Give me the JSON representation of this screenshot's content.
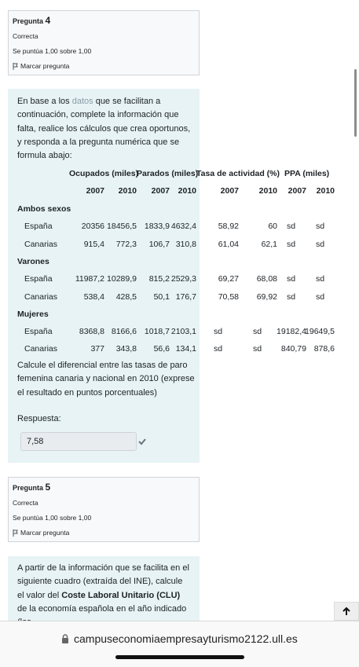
{
  "question4": {
    "label": "Pregunta",
    "number": "4",
    "state": "Correcta",
    "grade": "Se puntúa 1,00 sobre 1,00",
    "flag": "Marcar pregunta"
  },
  "question4_text": {
    "before": "En base a los ",
    "link": "datos",
    "after": " que se facilitan a continuación, complete la información que falta, realice los cálculos que crea oportunos, y responda a la pregunta numérica que se formula abajo:"
  },
  "table": {
    "groups": [
      "Ocupados (miles)",
      "Parados (miles)",
      "Tasa de actividad (%)",
      "PPA (miles)"
    ],
    "years": [
      "2007",
      "2010",
      "2007",
      "2010",
      "2007",
      "2010",
      "2007",
      "2010"
    ],
    "sections": [
      {
        "name": "Ambos sexos",
        "rows": [
          {
            "label": "España",
            "cells": [
              "20356",
              "18456,5",
              "1833,9",
              "4632,4",
              "58,92",
              "60",
              "sd",
              "sd"
            ]
          },
          {
            "label": "Canarias",
            "cells": [
              "915,4",
              "772,3",
              "106,7",
              "310,8",
              "61,04",
              "62,1",
              "sd",
              "sd"
            ]
          }
        ]
      },
      {
        "name": "Varones",
        "rows": [
          {
            "label": "España",
            "cells": [
              "11987,2",
              "10289,9",
              "815,2",
              "2529,3",
              "69,27",
              "68,08",
              "sd",
              "sd"
            ]
          },
          {
            "label": "Canarias",
            "cells": [
              "538,4",
              "428,5",
              "50,1",
              "176,7",
              "70,58",
              "69,92",
              "sd",
              "sd"
            ]
          }
        ]
      },
      {
        "name": "Mujeres",
        "rows": [
          {
            "label": "España",
            "cells": [
              "8368,8",
              "8166,6",
              "1018,7",
              "2103,1",
              "sd",
              "sd",
              "19182,4",
              "19649,5"
            ]
          },
          {
            "label": "Canarias",
            "cells": [
              "377",
              "343,8",
              "56,6",
              "134,1",
              "sd",
              "sd",
              "840,79",
              "878,6"
            ]
          }
        ]
      }
    ]
  },
  "question4_prompt": "Calcule el diferencial entre las tasas de paro femenina canaria y nacional en 2010 (exprese el resultado en puntos porcentuales)",
  "answer_label": "Respuesta:",
  "answer_value": "7,58",
  "question5": {
    "label": "Pregunta",
    "number": "5",
    "state": "Correcta",
    "grade": "Se puntúa 1,00 sobre 1,00",
    "flag": "Marcar pregunta"
  },
  "question5_text": {
    "before": "A partir de la información que se facilita en el siguiente cuadro (extraída del INE), calcule el valor del ",
    "bold": "Coste Laboral Unitario (CLU)",
    "after": " de la economía española en el año indicado  (los"
  },
  "url": "campuseconomiaempresayturismo2122.ull.es"
}
